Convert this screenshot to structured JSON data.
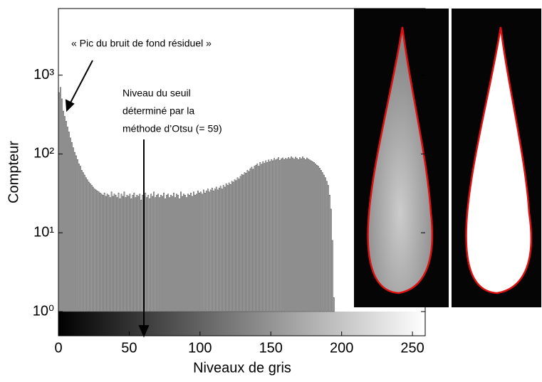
{
  "chart_data": {
    "type": "histogram",
    "xlabel": "Niveaux de gris",
    "ylabel": "Compteur",
    "annotations": [
      "« Pic du bruit de fond résiduel »",
      "Niveau du seuil",
      "déterminé par la",
      "méthode d’Otsu (= 59)"
    ],
    "yscale": "log",
    "color": "#444444",
    "xlim": [
      0,
      259
    ],
    "xticks": [
      0,
      50,
      100,
      150,
      200,
      250
    ],
    "ylim": [
      1,
      7000
    ],
    "yticks": [
      {
        "value": 1,
        "label": "10⁰"
      },
      {
        "value": 10,
        "label": "10¹"
      },
      {
        "value": 100,
        "label": "10²"
      },
      {
        "value": 1000,
        "label": "10³"
      }
    ],
    "bins": [
      0,
      1,
      2,
      3,
      4,
      5,
      6,
      7,
      8,
      9,
      10,
      11,
      12,
      13,
      14,
      15,
      16,
      17,
      18,
      19,
      20,
      21,
      22,
      23,
      24,
      25,
      26,
      27,
      28,
      29,
      30,
      31,
      32,
      33,
      34,
      35,
      36,
      37,
      38,
      39,
      40,
      41,
      42,
      43,
      44,
      45,
      46,
      47,
      48,
      49,
      50,
      51,
      52,
      53,
      54,
      55,
      56,
      57,
      58,
      59,
      60,
      61,
      62,
      63,
      64,
      65,
      66,
      67,
      68,
      69,
      70,
      71,
      72,
      73,
      74,
      75,
      76,
      77,
      78,
      79,
      80,
      81,
      82,
      83,
      84,
      85,
      86,
      87,
      88,
      89,
      90,
      91,
      92,
      93,
      94,
      95,
      96,
      97,
      98,
      99,
      100,
      101,
      102,
      103,
      104,
      105,
      106,
      107,
      108,
      109,
      110,
      111,
      112,
      113,
      114,
      115,
      116,
      117,
      118,
      119,
      120,
      121,
      122,
      123,
      124,
      125,
      126,
      127,
      128,
      129,
      130,
      131,
      132,
      133,
      134,
      135,
      136,
      137,
      138,
      139,
      140,
      141,
      142,
      143,
      144,
      145,
      146,
      147,
      148,
      149,
      150,
      151,
      152,
      153,
      154,
      155,
      156,
      157,
      158,
      159,
      160,
      161,
      162,
      163,
      164,
      165,
      166,
      167,
      168,
      169,
      170,
      171,
      172,
      173,
      174,
      175,
      176,
      177,
      178,
      179,
      180,
      181,
      182,
      183,
      184,
      185,
      186,
      187,
      188,
      189,
      190,
      191,
      192,
      193,
      194,
      195
    ],
    "values": [
      600,
      700,
      500,
      350,
      300,
      260,
      220,
      190,
      160,
      140,
      120,
      105,
      95,
      85,
      75,
      70,
      62,
      58,
      54,
      50,
      47,
      44,
      42,
      40,
      38,
      36,
      35,
      34,
      33,
      32,
      31,
      30,
      32,
      29,
      31,
      30,
      28,
      33,
      29,
      31,
      30,
      28,
      32,
      27,
      31,
      29,
      33,
      28,
      30,
      29,
      31,
      27,
      30,
      32,
      28,
      30,
      29,
      31,
      26,
      30,
      29,
      32,
      28,
      30,
      27,
      31,
      29,
      33,
      28,
      30,
      31,
      28,
      30,
      29,
      32,
      27,
      30,
      31,
      28,
      30,
      29,
      32,
      28,
      31,
      30,
      27,
      33,
      29,
      31,
      30,
      28,
      31,
      30,
      32,
      29,
      33,
      30,
      31,
      34,
      32,
      33,
      31,
      35,
      32,
      34,
      36,
      33,
      35,
      37,
      34,
      36,
      38,
      35,
      37,
      39,
      36,
      40,
      38,
      42,
      40,
      43,
      41,
      45,
      44,
      47,
      46,
      50,
      48,
      52,
      55,
      54,
      58,
      57,
      62,
      60,
      65,
      68,
      64,
      70,
      72,
      75,
      70,
      78,
      74,
      80,
      76,
      82,
      78,
      84,
      80,
      85,
      82,
      88,
      84,
      86,
      90,
      83,
      87,
      89,
      85,
      88,
      86,
      90,
      87,
      92,
      89,
      86,
      91,
      88,
      85,
      90,
      87,
      92,
      88,
      85,
      89,
      86,
      84,
      82,
      80,
      78,
      75,
      72,
      70,
      66,
      62,
      58,
      54,
      50,
      45,
      40,
      30,
      20,
      8,
      1.5
    ]
  }
}
